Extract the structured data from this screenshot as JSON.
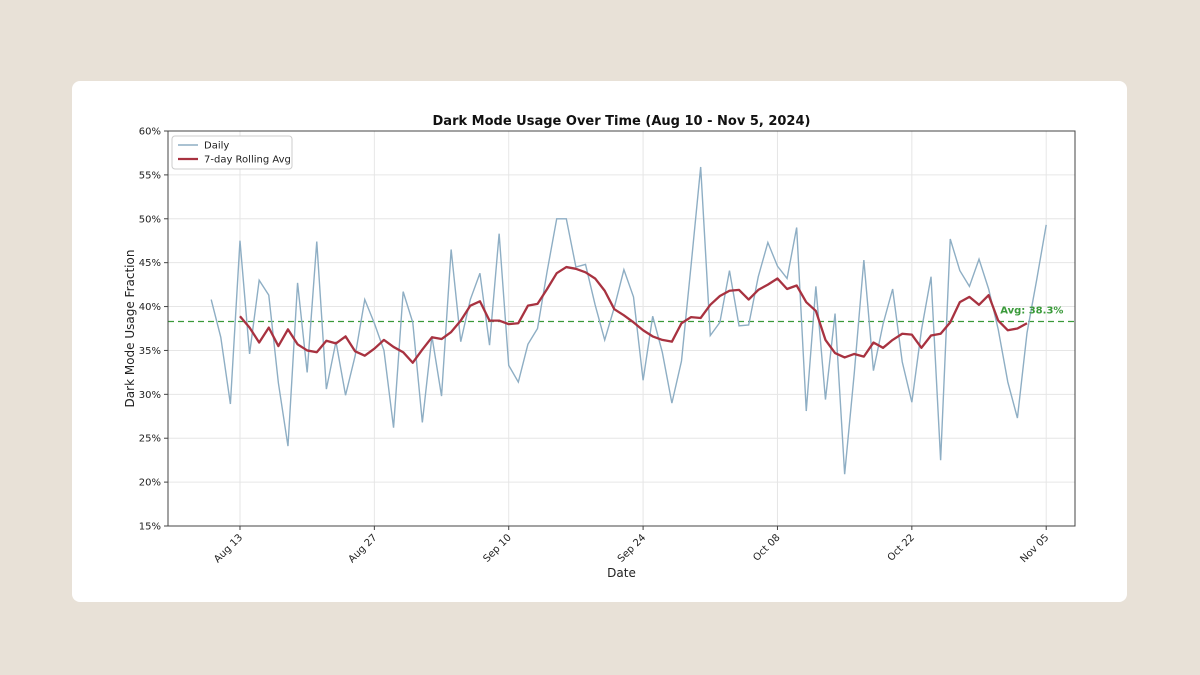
{
  "chart_data": {
    "type": "line",
    "title": "Dark Mode Usage Over Time (Aug 10 - Nov 5, 2024)",
    "xlabel": "Date",
    "ylabel": "Dark Mode Usage Fraction",
    "ylim": [
      0.15,
      0.6
    ],
    "yticks": [
      0.15,
      0.2,
      0.25,
      0.3,
      0.35,
      0.4,
      0.45,
      0.5,
      0.55,
      0.6
    ],
    "ytick_labels": [
      "15%",
      "20%",
      "25%",
      "30%",
      "35%",
      "40%",
      "45%",
      "50%",
      "55%",
      "60%"
    ],
    "x_start": "Aug 10, 2024",
    "x_range_days": [
      -4.5,
      90
    ],
    "xticks": [
      3,
      17,
      31,
      45,
      59,
      73,
      87
    ],
    "xtick_labels": [
      "Aug 13",
      "Aug 27",
      "Sep 10",
      "Sep 24",
      "Oct 08",
      "Oct 22",
      "Nov 05"
    ],
    "grid": true,
    "legend_position": "upper-left",
    "average": {
      "value": 0.383,
      "label": "Avg: 38.3%",
      "color": "#3a9a3a"
    },
    "series": [
      {
        "name": "Daily",
        "color": "#8eaec4",
        "x_start_day": 0,
        "values": [
          0.408,
          0.365,
          0.289,
          0.475,
          0.346,
          0.43,
          0.413,
          0.313,
          0.241,
          0.427,
          0.325,
          0.474,
          0.306,
          0.36,
          0.299,
          0.344,
          0.408,
          0.381,
          0.35,
          0.262,
          0.417,
          0.382,
          0.268,
          0.366,
          0.298,
          0.465,
          0.36,
          0.408,
          0.438,
          0.356,
          0.483,
          0.333,
          0.314,
          0.357,
          0.375,
          0.44,
          0.5,
          0.5,
          0.445,
          0.448,
          0.402,
          0.362,
          0.399,
          0.442,
          0.411,
          0.316,
          0.389,
          0.348,
          0.29,
          0.338,
          0.447,
          0.559,
          0.367,
          0.382,
          0.441,
          0.378,
          0.379,
          0.434,
          0.473,
          0.446,
          0.432,
          0.49,
          0.281,
          0.423,
          0.294,
          0.392,
          0.209,
          0.324,
          0.453,
          0.327,
          0.38,
          0.42,
          0.337,
          0.291,
          0.373,
          0.434,
          0.225,
          0.477,
          0.441,
          0.423,
          0.454,
          0.42,
          0.374,
          0.314,
          0.273,
          0.37,
          0.43,
          0.493
        ]
      },
      {
        "name": "7-day Rolling Avg",
        "color": "#a83240",
        "x_start_day": 3,
        "values": [
          0.389,
          0.376,
          0.359,
          0.376,
          0.355,
          0.374,
          0.357,
          0.35,
          0.348,
          0.361,
          0.358,
          0.366,
          0.349,
          0.344,
          0.352,
          0.362,
          0.354,
          0.348,
          0.336,
          0.351,
          0.365,
          0.363,
          0.371,
          0.384,
          0.401,
          0.406,
          0.384,
          0.384,
          0.38,
          0.381,
          0.401,
          0.403,
          0.42,
          0.438,
          0.445,
          0.443,
          0.439,
          0.432,
          0.418,
          0.397,
          0.39,
          0.382,
          0.373,
          0.366,
          0.362,
          0.36,
          0.381,
          0.388,
          0.387,
          0.402,
          0.412,
          0.418,
          0.419,
          0.408,
          0.419,
          0.425,
          0.432,
          0.42,
          0.424,
          0.405,
          0.395,
          0.362,
          0.347,
          0.342,
          0.346,
          0.343,
          0.359,
          0.353,
          0.362,
          0.369,
          0.368,
          0.353,
          0.367,
          0.369,
          0.382,
          0.405,
          0.411,
          0.402,
          0.413,
          0.384,
          0.373,
          0.375,
          0.381
        ]
      }
    ]
  }
}
